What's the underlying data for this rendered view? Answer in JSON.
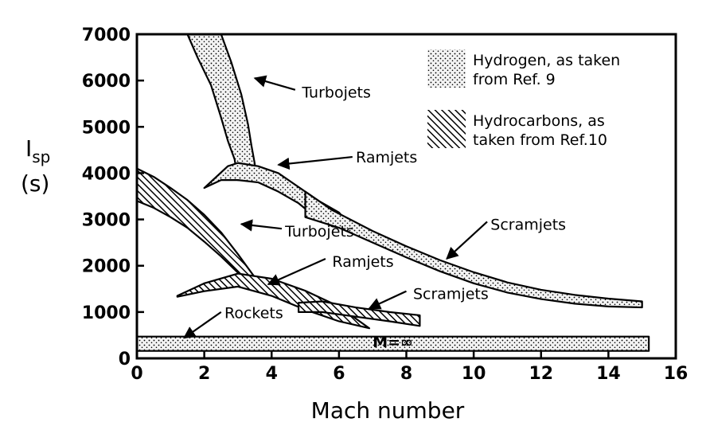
{
  "chart_data": {
    "type": "area",
    "xlabel": "Mach number",
    "ylabel_main": "I",
    "ylabel_sub": "sp",
    "ylabel_unit": "(s)",
    "xlim": [
      0,
      16
    ],
    "ylim": [
      0,
      7000
    ],
    "x_ticks": [
      0,
      2,
      4,
      6,
      8,
      10,
      12,
      14,
      16
    ],
    "y_ticks": [
      0,
      1000,
      2000,
      3000,
      4000,
      5000,
      6000,
      7000
    ],
    "x_tick_labels": [
      "0",
      "2",
      "4",
      "6",
      "8",
      "10",
      "12",
      "14",
      "16"
    ],
    "y_tick_labels": [
      "0",
      "1000",
      "2000",
      "3000",
      "4000",
      "5000",
      "6000",
      "7000"
    ],
    "grid": false,
    "legend": {
      "placement": "top-right",
      "entries": [
        {
          "fill": "stipple",
          "line1": "Hydrogen, as taken",
          "line2": "from Ref. 9"
        },
        {
          "fill": "hatch",
          "line1": "Hydrocarbons, as",
          "line2": "taken from Ref.10"
        }
      ]
    },
    "series": [
      {
        "name": "Turbojets",
        "fuel": "hydrogen",
        "fill": "stipple",
        "upper": [
          [
            2.5,
            7000
          ],
          [
            2.8,
            6400
          ],
          [
            3.1,
            5700
          ],
          [
            3.3,
            5050
          ],
          [
            3.4,
            4600
          ],
          [
            3.5,
            4200
          ],
          [
            3.5,
            3900
          ]
        ],
        "lower": [
          [
            1.5,
            7000
          ],
          [
            1.8,
            6500
          ],
          [
            2.2,
            5900
          ],
          [
            2.5,
            5200
          ],
          [
            2.7,
            4700
          ],
          [
            2.9,
            4300
          ],
          [
            3.0,
            3850
          ]
        ]
      },
      {
        "name": "Ramjets",
        "fuel": "hydrogen",
        "fill": "stipple",
        "upper": [
          [
            2.7,
            4150
          ],
          [
            3.0,
            4220
          ],
          [
            3.6,
            4150
          ],
          [
            4.2,
            4000
          ],
          [
            4.8,
            3700
          ],
          [
            5.4,
            3400
          ],
          [
            6.0,
            3150
          ],
          [
            6.3,
            2900
          ]
        ],
        "lower": [
          [
            2.0,
            3680
          ],
          [
            2.5,
            3850
          ],
          [
            3.0,
            3850
          ],
          [
            3.6,
            3800
          ],
          [
            4.2,
            3600
          ],
          [
            4.8,
            3350
          ],
          [
            5.3,
            3050
          ],
          [
            5.8,
            2850
          ],
          [
            6.3,
            2800
          ]
        ]
      },
      {
        "name": "Scramjets",
        "fuel": "hydrogen",
        "fill": "stipple",
        "upper": [
          [
            5.0,
            3600
          ],
          [
            5.8,
            3200
          ],
          [
            7.0,
            2750
          ],
          [
            8.0,
            2420
          ],
          [
            9.0,
            2120
          ],
          [
            10.0,
            1860
          ],
          [
            11.0,
            1640
          ],
          [
            12.0,
            1480
          ],
          [
            13.0,
            1370
          ],
          [
            14.0,
            1290
          ],
          [
            15.0,
            1230
          ]
        ],
        "lower": [
          [
            5.0,
            3050
          ],
          [
            6.0,
            2820
          ],
          [
            7.0,
            2500
          ],
          [
            8.0,
            2180
          ],
          [
            9.0,
            1880
          ],
          [
            10.0,
            1620
          ],
          [
            11.0,
            1420
          ],
          [
            12.0,
            1280
          ],
          [
            13.0,
            1180
          ],
          [
            14.0,
            1120
          ],
          [
            15.0,
            1100
          ]
        ]
      },
      {
        "name": "Turbojets",
        "fuel": "hydrocarbons",
        "fill": "hatch",
        "upper": [
          [
            0,
            4100
          ],
          [
            0.5,
            3920
          ],
          [
            1.0,
            3680
          ],
          [
            1.5,
            3420
          ],
          [
            2.0,
            3100
          ],
          [
            2.5,
            2720
          ],
          [
            3.0,
            2250
          ],
          [
            3.3,
            1950
          ],
          [
            3.6,
            1650
          ]
        ],
        "lower": [
          [
            0,
            3400
          ],
          [
            0.5,
            3250
          ],
          [
            1.0,
            3050
          ],
          [
            1.5,
            2820
          ],
          [
            2.0,
            2520
          ],
          [
            2.5,
            2200
          ],
          [
            3.0,
            1850
          ],
          [
            3.3,
            1650
          ],
          [
            3.6,
            1650
          ]
        ]
      },
      {
        "name": "Ramjets",
        "fuel": "hydrocarbons",
        "fill": "hatch",
        "upper": [
          [
            1.2,
            1350
          ],
          [
            2.0,
            1620
          ],
          [
            3.0,
            1830
          ],
          [
            4.0,
            1720
          ],
          [
            5.0,
            1460
          ],
          [
            6.0,
            1120
          ],
          [
            6.9,
            650
          ]
        ],
        "lower": [
          [
            1.2,
            1330
          ],
          [
            2.0,
            1450
          ],
          [
            3.0,
            1550
          ],
          [
            4.0,
            1350
          ],
          [
            5.0,
            1050
          ],
          [
            6.0,
            800
          ],
          [
            6.9,
            650
          ]
        ]
      },
      {
        "name": "Scramjets",
        "fuel": "hydrocarbons",
        "fill": "hatch",
        "upper": [
          [
            4.8,
            1200
          ],
          [
            5.5,
            1230
          ],
          [
            6.5,
            1100
          ],
          [
            7.5,
            1000
          ],
          [
            8.4,
            930
          ]
        ],
        "lower": [
          [
            4.8,
            1000
          ],
          [
            5.5,
            1000
          ],
          [
            6.5,
            900
          ],
          [
            7.5,
            800
          ],
          [
            8.4,
            700
          ]
        ]
      },
      {
        "name": "Rockets",
        "fuel": "hydrogen",
        "fill": "stipple",
        "bounds": "horizontal",
        "xrange": [
          0,
          15.2
        ],
        "ymin": 160,
        "ymax": 470
      }
    ],
    "annotations": [
      {
        "text": "Turbojets",
        "fuel": "hydrogen",
        "label": [
          4.9,
          5750
        ],
        "arrow_from": [
          4.7,
          5800
        ],
        "arrow_to": [
          3.5,
          6050
        ]
      },
      {
        "text": "Ramjets",
        "fuel": "hydrogen",
        "label": [
          6.5,
          4350
        ],
        "arrow_from": [
          6.4,
          4350
        ],
        "arrow_to": [
          4.2,
          4180
        ]
      },
      {
        "text": "Turbojets",
        "fuel": "hydrocarbons",
        "label": [
          4.4,
          2750
        ],
        "arrow_from": [
          4.3,
          2800
        ],
        "arrow_to": [
          3.1,
          2900
        ]
      },
      {
        "text": "Ramjets",
        "fuel": "hydrocarbons",
        "label": [
          5.8,
          2100
        ],
        "arrow_from": [
          5.6,
          2150
        ],
        "arrow_to": [
          3.9,
          1600
        ]
      },
      {
        "text": "Scramjets",
        "fuel": "hydrogen",
        "label": [
          10.5,
          2900
        ],
        "arrow_from": [
          10.4,
          2950
        ],
        "arrow_to": [
          9.2,
          2150
        ]
      },
      {
        "text": "Scramjets",
        "fuel": "hydrocarbons",
        "label": [
          8.2,
          1400
        ],
        "arrow_from": [
          8.0,
          1450
        ],
        "arrow_to": [
          6.9,
          1080
        ]
      },
      {
        "text": "Rockets",
        "fuel": "hydrogen",
        "label": [
          2.6,
          990
        ],
        "arrow_from": [
          2.5,
          1000
        ],
        "arrow_to": [
          1.4,
          440
        ]
      }
    ],
    "inline_label": {
      "text": "M=∞",
      "at": [
        7.6,
        340
      ]
    }
  }
}
